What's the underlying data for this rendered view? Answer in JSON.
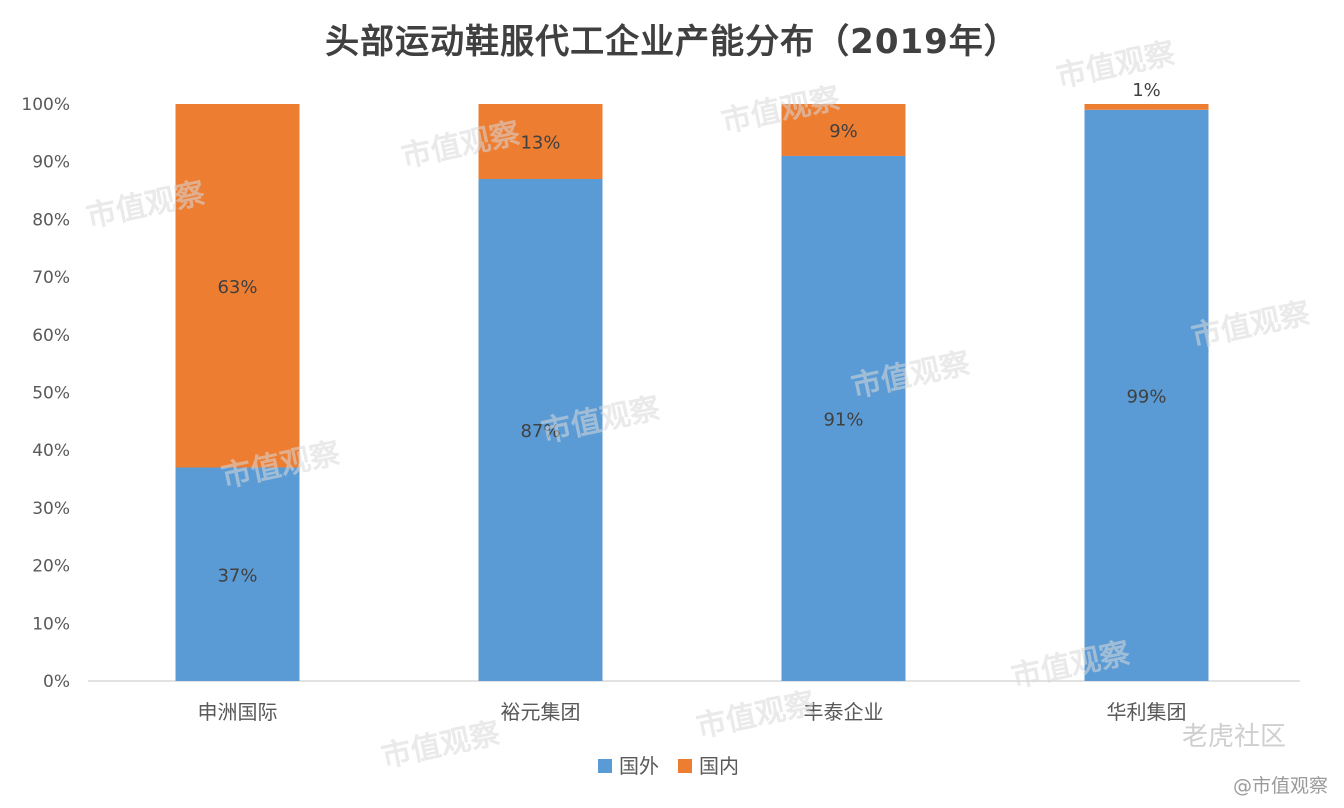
{
  "watermark": {
    "brand": "市值观察",
    "credit": "@市值观察",
    "corner": "老虎社区"
  },
  "colors": {
    "series_overseas": "#5B9BD5",
    "series_domestic": "#ED7D31",
    "axis_text": "#595959",
    "gridline": "#d9d9d9"
  },
  "chart_data": {
    "type": "bar",
    "stacked": true,
    "title": "头部运动鞋服代工企业产能分布（2019年）",
    "categories": [
      "申洲国际",
      "裕元集团",
      "丰泰企业",
      "华利集团"
    ],
    "series": [
      {
        "name": "国外",
        "values": [
          37,
          87,
          91,
          99
        ],
        "labels": [
          "37%",
          "87%",
          "91%",
          "99%"
        ]
      },
      {
        "name": "国内",
        "values": [
          63,
          13,
          9,
          1
        ],
        "labels": [
          "63%",
          "13%",
          "9%",
          "1%"
        ]
      }
    ],
    "y_ticks": [
      "0%",
      "10%",
      "20%",
      "30%",
      "40%",
      "50%",
      "60%",
      "70%",
      "80%",
      "90%",
      "100%"
    ],
    "ylim": [
      0,
      100
    ],
    "legend_position": "bottom",
    "grid": false
  }
}
